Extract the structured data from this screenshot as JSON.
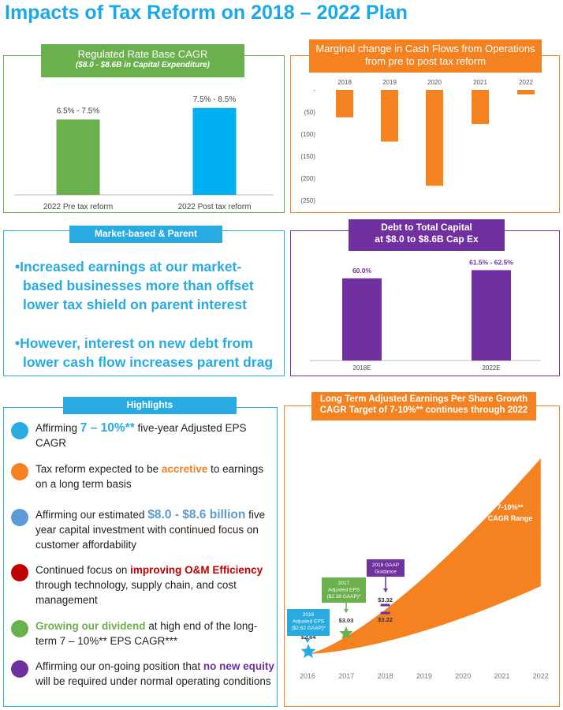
{
  "title": "Impacts of Tax Reform on 2018 – 2022 Plan",
  "colors": {
    "blue": "#29abe2",
    "green": "#6ab04c",
    "orange": "#f58220",
    "purple": "#7030a0",
    "red": "#c00000",
    "steel": "#5b9bd5"
  },
  "market_based": {
    "header": "Market-based & Parent",
    "bullets": [
      {
        "bullet": "•",
        "lines": [
          "Increased earnings at our market-",
          "based businesses more than offset",
          "lower tax shield on parent interest"
        ]
      },
      {
        "bullet": "•",
        "lines": [
          "However, interest on new debt from",
          "lower cash flow increases parent drag"
        ]
      }
    ]
  },
  "highlights": {
    "header": "Highlights",
    "items": [
      {
        "icon": "blue-circle-icon",
        "parts": [
          {
            "t": "Affirming "
          },
          {
            "t": "7 – 10%**",
            "c": "#29abe2",
            "b": true,
            "big": true
          },
          {
            "t": " five-year Adjusted EPS CAGR"
          }
        ]
      },
      {
        "icon": "orange-circle-icon",
        "parts": [
          {
            "t": "Tax reform expected to be "
          },
          {
            "t": "accretive",
            "c": "#f58220",
            "b": true
          },
          {
            "t": " to earnings on a long term basis"
          }
        ]
      },
      {
        "icon": "steel-blue-circle-icon",
        "parts": [
          {
            "t": "Affirming our estimated "
          },
          {
            "t": "$8.0 - $8.6 billion",
            "c": "#5b9bd5",
            "b": true,
            "big": true
          },
          {
            "t": " five year capital investment with continued focus on customer affordability"
          }
        ]
      },
      {
        "icon": "red-circle-icon",
        "parts": [
          {
            "t": "Continued focus on "
          },
          {
            "t": "improving O&M Efficiency",
            "c": "#c00000",
            "b": true
          },
          {
            "t": " through technology, supply chain, and cost management"
          }
        ]
      },
      {
        "icon": "green-circle-icon",
        "parts": [
          {
            "t": "Growing our dividend",
            "c": "#6ab04c",
            "b": true
          },
          {
            "t": " at high end of the long-term 7 – 10%** EPS CAGR***"
          }
        ]
      },
      {
        "icon": "purple-circle-icon",
        "parts": [
          {
            "t": "Affirming our on-going position that "
          },
          {
            "t": "no new equity",
            "c": "#7030a0",
            "b": true
          },
          {
            "t": " will be required under normal operating conditions"
          }
        ]
      }
    ]
  },
  "chart_data": [
    {
      "type": "bar",
      "title": "Regulated Rate Base CAGR",
      "subtitle": "($8.0 - $8.6B in Capital Expenditure)",
      "categories": [
        "2022 Pre tax reform",
        "2022 Post tax reform"
      ],
      "values": [
        [
          6.5,
          7.5
        ],
        [
          7.5,
          8.5
        ]
      ],
      "data_labels": [
        "6.5% - 7.5%",
        "7.5% - 8.5%"
      ],
      "colors": [
        "#6ab04c",
        "#00b0f0"
      ],
      "ylim": [
        0,
        10
      ]
    },
    {
      "type": "bar",
      "title": "Marginal change in Cash Flows from Operations",
      "subtitle": "from pre to post tax reform",
      "categories": [
        "2018",
        "2019",
        "2020",
        "2021",
        "2022"
      ],
      "values": [
        -62,
        -117,
        -217,
        -77,
        -10
      ],
      "ylim": [
        -250,
        0
      ],
      "yticks": [
        0,
        -50,
        -100,
        -150,
        -200,
        -250
      ],
      "ytick_labels": [
        "-",
        "(50)",
        "(100)",
        "(150)",
        "(200)",
        "(250)"
      ],
      "color": "#f58220"
    },
    {
      "type": "bar",
      "title": "Debt to Total Capital",
      "subtitle": "at $8.0 to $8.6B Cap Ex",
      "categories": [
        "2018E",
        "2022E"
      ],
      "values": [
        60.0,
        62.0
      ],
      "data_labels": [
        "60.0%",
        "61.5% - 62.5%"
      ],
      "color": "#7030a0",
      "ylim": [
        40,
        64
      ]
    },
    {
      "type": "area",
      "title": "Long Term Adjusted Earnings Per Share Growth",
      "subtitle": "CAGR Target of 7-10%** continues through 2022",
      "x": [
        2016,
        2017,
        2018,
        2019,
        2020,
        2021,
        2022
      ],
      "xtick_labels": [
        "2016",
        "2017",
        "2018",
        "2019",
        "2020",
        "2021",
        "2022"
      ],
      "base": 2.84,
      "growth_low": 0.07,
      "growth_high": 0.1,
      "range_label": [
        "7-10%**",
        "CAGR Range"
      ],
      "points": [
        {
          "x": 2016,
          "y": 2.84,
          "label": "$2.84",
          "marker": "star",
          "color": "#29abe2"
        },
        {
          "x": 2017,
          "y": 3.03,
          "label": "$3.03",
          "marker": "star",
          "color": "#6ab04c"
        }
      ],
      "guidance": {
        "x": 2018,
        "low": 3.22,
        "high": 3.32,
        "labels": [
          "$3.32",
          "$3.22"
        ],
        "color": "#7030a0"
      },
      "callouts": [
        {
          "lines": [
            "2016",
            "Adjusted EPS",
            "($2.62 GAAP)*"
          ],
          "color": "#29abe2"
        },
        {
          "lines": [
            "2017",
            "Adjusted EPS",
            "($2.38 GAAP)*"
          ],
          "color": "#6ab04c"
        },
        {
          "lines": [
            "2018 GAAP",
            "Guidance"
          ],
          "color": "#7030a0"
        }
      ]
    }
  ]
}
